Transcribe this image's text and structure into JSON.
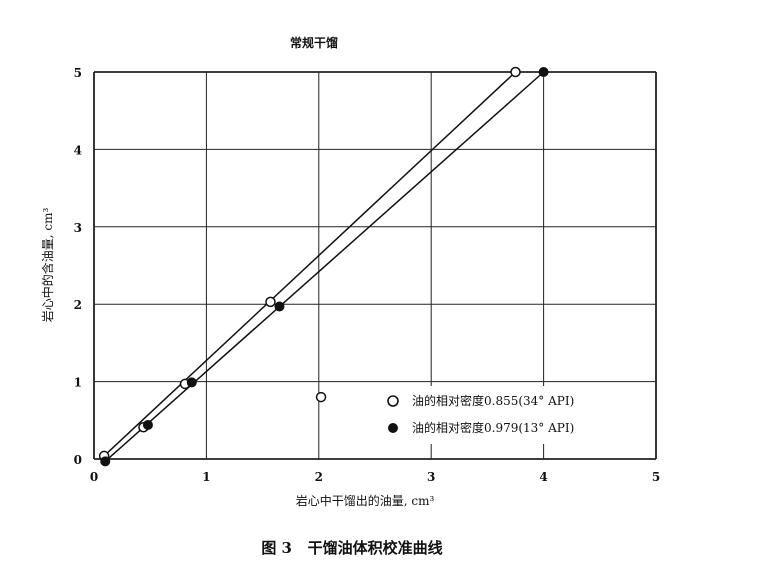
{
  "chart_data": {
    "type": "scatter",
    "title": "常规干馏",
    "caption": "图 3   干馏油体积校准曲线",
    "xlabel": "岩心中干馏出的油量, cm³",
    "ylabel": "岩心中的含油量, cm³",
    "xlim": [
      0,
      5
    ],
    "ylim": [
      0,
      5
    ],
    "xticks": [
      "0",
      "1",
      "2",
      "3",
      "4",
      "5"
    ],
    "yticks": [
      "0",
      "1",
      "2",
      "3",
      "4",
      "5"
    ],
    "grid": true,
    "legend_position": "bottom-right",
    "series": [
      {
        "name": "油的相对密度0.855(34° API)",
        "marker": "open-circle",
        "points": [
          [
            0.09,
            0.04
          ],
          [
            0.44,
            0.41
          ],
          [
            0.81,
            0.97
          ],
          [
            1.57,
            2.03
          ],
          [
            2.02,
            0.8
          ],
          [
            3.75,
            5.0
          ]
        ],
        "fit_line": [
          [
            0.09,
            0.04
          ],
          [
            3.75,
            5.0
          ]
        ]
      },
      {
        "name": "油的相对密度0.979(13° API)",
        "marker": "filled-circle",
        "points": [
          [
            0.1,
            -0.03
          ],
          [
            0.48,
            0.44
          ],
          [
            0.87,
            0.99
          ],
          [
            1.65,
            1.97
          ],
          [
            4.0,
            5.0
          ]
        ],
        "fit_line": [
          [
            0.1,
            -0.03
          ],
          [
            4.0,
            5.0
          ]
        ]
      }
    ]
  }
}
